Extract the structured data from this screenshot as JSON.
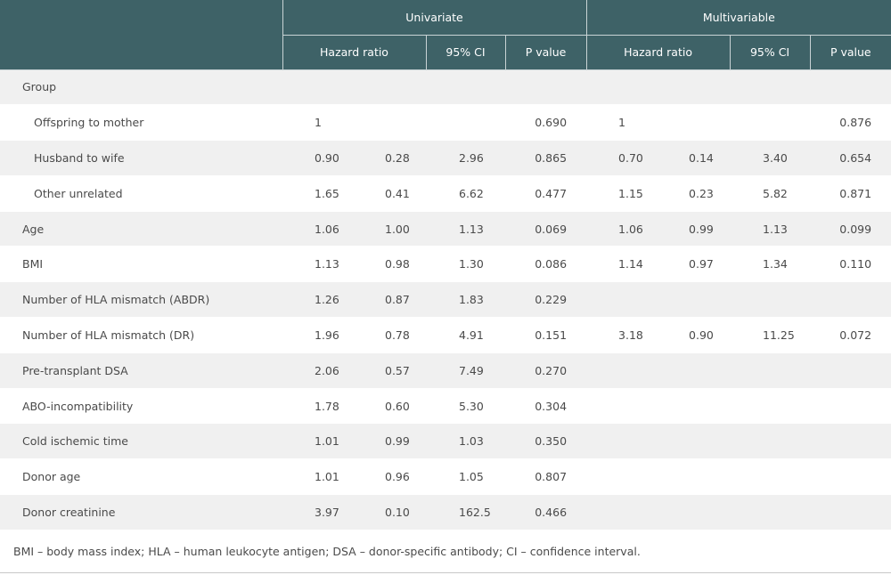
{
  "headers": {
    "univariate": "Univariate",
    "multivariable": "Multivariable",
    "hazard_ratio": "Hazard ratio",
    "ci": "95% CI",
    "p_value": "P value"
  },
  "rows": [
    {
      "label": "Group",
      "sub": false,
      "cells": [
        "",
        "",
        "",
        "",
        "",
        "",
        "",
        ""
      ]
    },
    {
      "label": "Offspring to mother",
      "sub": true,
      "cells": [
        "1",
        "",
        "",
        "0.690",
        "1",
        "",
        "",
        "0.876"
      ]
    },
    {
      "label": "Husband to wife",
      "sub": true,
      "cells": [
        "0.90",
        "0.28",
        "2.96",
        "0.865",
        "0.70",
        "0.14",
        "3.40",
        "0.654"
      ]
    },
    {
      "label": "Other unrelated",
      "sub": true,
      "cells": [
        "1.65",
        "0.41",
        "6.62",
        "0.477",
        "1.15",
        "0.23",
        "5.82",
        "0.871"
      ]
    },
    {
      "label": "Age",
      "sub": false,
      "cells": [
        "1.06",
        "1.00",
        "1.13",
        "0.069",
        "1.06",
        "0.99",
        "1.13",
        "0.099"
      ]
    },
    {
      "label": "BMI",
      "sub": false,
      "cells": [
        "1.13",
        "0.98",
        "1.30",
        "0.086",
        "1.14",
        "0.97",
        "1.34",
        "0.110"
      ]
    },
    {
      "label": "Number of HLA mismatch (ABDR)",
      "sub": false,
      "cells": [
        "1.26",
        "0.87",
        "1.83",
        "0.229",
        "",
        "",
        "",
        ""
      ]
    },
    {
      "label": "Number of HLA mismatch (DR)",
      "sub": false,
      "cells": [
        "1.96",
        "0.78",
        "4.91",
        "0.151",
        "3.18",
        "0.90",
        "11.25",
        "0.072"
      ]
    },
    {
      "label": "Pre-transplant DSA",
      "sub": false,
      "cells": [
        "2.06",
        "0.57",
        "7.49",
        "0.270",
        "",
        "",
        "",
        ""
      ]
    },
    {
      "label": "ABO-incompatibility",
      "sub": false,
      "cells": [
        "1.78",
        "0.60",
        "5.30",
        "0.304",
        "",
        "",
        "",
        ""
      ]
    },
    {
      "label": "Cold ischemic time",
      "sub": false,
      "cells": [
        "1.01",
        "0.99",
        "1.03",
        "0.350",
        "",
        "",
        "",
        ""
      ]
    },
    {
      "label": "Donor age",
      "sub": false,
      "cells": [
        "1.01",
        "0.96",
        "1.05",
        "0.807",
        "",
        "",
        "",
        ""
      ]
    },
    {
      "label": "Donor creatinine",
      "sub": false,
      "cells": [
        "3.97",
        "0.10",
        "162.5",
        "0.466",
        "",
        "",
        "",
        ""
      ]
    }
  ],
  "footnote": "BMI – body mass index; HLA – human leukocyte antigen; DSA – donor-specific antibody; CI – confidence interval.",
  "colors": {
    "header_bg": "#3e6267",
    "header_text": "#ffffff",
    "stripe": "#f0f0f0"
  }
}
